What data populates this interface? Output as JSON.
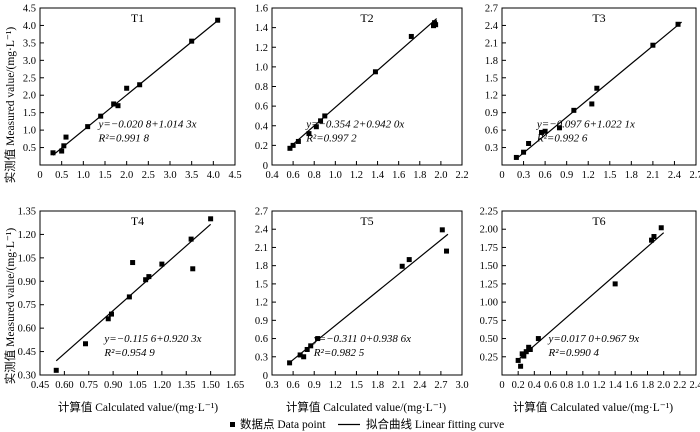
{
  "axis_labels": {
    "ylabel": "实测值 Measured value/(mg·L⁻¹)",
    "xlabel": "计算值 Calculated value/(mg·L⁻¹)"
  },
  "legend": {
    "point_label": "数据点 Data point",
    "line_label": "拟合曲线 Linear fitting curve"
  },
  "chart_data": [
    {
      "type": "scatter",
      "title": "T1",
      "xlim": [
        0,
        4.5
      ],
      "ylim": [
        0,
        4.5
      ],
      "xticks": [
        0.5,
        1.0,
        1.5,
        2.0,
        2.5,
        3.0,
        3.5,
        4.0,
        4.5
      ],
      "xtick_labels": [
        "0.5",
        "1.0",
        "1.5",
        "2.0",
        "2.5",
        "3.0",
        "3.5",
        "4.0",
        "4.5"
      ],
      "yticks": [
        0.5,
        1.0,
        1.5,
        2.0,
        2.5,
        3.0,
        3.5,
        4.0,
        4.5
      ],
      "ytick_labels": [
        "0.5",
        "1.0",
        "1.5",
        "2.0",
        "2.5",
        "3.0",
        "3.5",
        "4.0",
        "4.5"
      ],
      "points": [
        [
          0.3,
          0.35
        ],
        [
          0.5,
          0.4
        ],
        [
          0.55,
          0.55
        ],
        [
          0.6,
          0.8
        ],
        [
          1.1,
          1.1
        ],
        [
          1.4,
          1.4
        ],
        [
          1.7,
          1.75
        ],
        [
          1.8,
          1.7
        ],
        [
          2.0,
          2.2
        ],
        [
          2.3,
          2.3
        ],
        [
          3.5,
          3.55
        ],
        [
          4.1,
          4.15
        ]
      ],
      "fit": {
        "slope": 1.0143,
        "intercept": -0.0208,
        "x_range": [
          0.3,
          4.15
        ]
      },
      "equation": "y=−0.020 8+1.014 3x",
      "r2": "R²=0.991 8",
      "ylabel": "实测值 Measured value/(mg·L⁻¹)",
      "xlabel": ""
    },
    {
      "type": "scatter",
      "title": "T2",
      "xlim": [
        0.4,
        2.2
      ],
      "ylim": [
        0,
        1.6
      ],
      "xticks": [
        0.4,
        0.6,
        0.8,
        1.0,
        1.2,
        1.4,
        1.6,
        1.8,
        2.0,
        2.2
      ],
      "xtick_labels": [
        "0.4",
        "0.6",
        "0.8",
        "1.0",
        "1.2",
        "1.4",
        "1.6",
        "1.8",
        "2.0",
        "2.2"
      ],
      "yticks": [
        0.2,
        0.4,
        0.6,
        0.8,
        1.0,
        1.2,
        1.4,
        1.6
      ],
      "ytick_labels": [
        "0.2",
        "0.4",
        "0.6",
        "0.8",
        "1.0",
        "1.2",
        "1.4",
        "1.6"
      ],
      "points": [
        [
          0.57,
          0.17
        ],
        [
          0.6,
          0.2
        ],
        [
          0.65,
          0.24
        ],
        [
          0.75,
          0.32
        ],
        [
          0.82,
          0.39
        ],
        [
          0.86,
          0.45
        ],
        [
          0.9,
          0.5
        ],
        [
          1.38,
          0.95
        ],
        [
          1.72,
          1.31
        ],
        [
          1.93,
          1.42
        ],
        [
          1.95,
          1.43
        ],
        [
          1.94,
          1.45
        ]
      ],
      "fit": {
        "slope": 0.942,
        "intercept": -0.3542,
        "x_range": [
          0.57,
          1.96
        ]
      },
      "equation": "y=−0.354 2+0.942 0x",
      "r2": "R²=0.997 2",
      "ylabel": "",
      "xlabel": ""
    },
    {
      "type": "scatter",
      "title": "T3",
      "xlim": [
        0,
        2.7
      ],
      "ylim": [
        0,
        2.7
      ],
      "xticks": [
        0.3,
        0.6,
        0.9,
        1.2,
        1.5,
        1.8,
        2.1,
        2.4,
        2.7
      ],
      "xtick_labels": [
        "0.3",
        "0.6",
        "0.9",
        "1.2",
        "1.5",
        "1.8",
        "2.1",
        "2.4",
        "2.7"
      ],
      "yticks": [
        0.3,
        0.6,
        0.9,
        1.2,
        1.5,
        1.8,
        2.1,
        2.4,
        2.7
      ],
      "ytick_labels": [
        "0.3",
        "0.6",
        "0.9",
        "1.2",
        "1.5",
        "1.8",
        "2.1",
        "2.4",
        "2.7"
      ],
      "points": [
        [
          0.2,
          0.13
        ],
        [
          0.3,
          0.22
        ],
        [
          0.37,
          0.37
        ],
        [
          0.55,
          0.56
        ],
        [
          0.6,
          0.58
        ],
        [
          0.8,
          0.64
        ],
        [
          1.0,
          0.94
        ],
        [
          1.25,
          1.05
        ],
        [
          1.32,
          1.32
        ],
        [
          2.1,
          2.06
        ],
        [
          2.45,
          2.42
        ]
      ],
      "fit": {
        "slope": 1.0221,
        "intercept": -0.0976,
        "x_range": [
          0.2,
          2.5
        ]
      },
      "equation": "y=−0.097 6+1.022 1x",
      "r2": "R²=0.992 6",
      "ylabel": "",
      "xlabel": ""
    },
    {
      "type": "scatter",
      "title": "T4",
      "xlim": [
        0.45,
        1.65
      ],
      "ylim": [
        0.3,
        1.35
      ],
      "xticks": [
        0.45,
        0.6,
        0.75,
        0.9,
        1.05,
        1.2,
        1.35,
        1.5,
        1.65
      ],
      "xtick_labels": [
        "0.45",
        "0.60",
        "0.75",
        "0.90",
        "1.05",
        "1.20",
        "1.35",
        "1.50",
        "1.65"
      ],
      "yticks": [
        0.3,
        0.45,
        0.6,
        0.75,
        0.9,
        1.05,
        1.2,
        1.35
      ],
      "ytick_labels": [
        "0.30",
        "0.45",
        "0.60",
        "0.75",
        "0.90",
        "1.05",
        "1.20",
        "1.35"
      ],
      "points": [
        [
          0.55,
          0.33
        ],
        [
          0.73,
          0.5
        ],
        [
          0.87,
          0.66
        ],
        [
          0.89,
          0.69
        ],
        [
          1.0,
          0.8
        ],
        [
          1.02,
          1.02
        ],
        [
          1.1,
          0.91
        ],
        [
          1.12,
          0.93
        ],
        [
          1.2,
          1.01
        ],
        [
          1.38,
          1.17
        ],
        [
          1.39,
          0.98
        ],
        [
          1.5,
          1.3
        ]
      ],
      "fit": {
        "slope": 0.9203,
        "intercept": -0.1156,
        "x_range": [
          0.55,
          1.5
        ]
      },
      "equation": "y=−0.115 6+0.920 3x",
      "r2": "R²=0.954 9",
      "ylabel": "实测值 Measured value/(mg·L⁻¹)",
      "xlabel": "计算值 Calculated value/(mg·L⁻¹)"
    },
    {
      "type": "scatter",
      "title": "T5",
      "xlim": [
        0.3,
        3.0
      ],
      "ylim": [
        0,
        2.7
      ],
      "xticks": [
        0.3,
        0.6,
        0.9,
        1.2,
        1.5,
        1.8,
        2.1,
        2.4,
        2.7,
        3.0
      ],
      "xtick_labels": [
        "0.3",
        "0.6",
        "0.9",
        "1.2",
        "1.5",
        "1.8",
        "2.1",
        "2.4",
        "2.7",
        "3.0"
      ],
      "yticks": [
        0.3,
        0.6,
        0.9,
        1.2,
        1.5,
        1.8,
        2.1,
        2.4,
        2.7
      ],
      "ytick_labels": [
        "0.3",
        "0.6",
        "0.9",
        "1.2",
        "1.5",
        "1.8",
        "2.1",
        "2.4",
        "2.7"
      ],
      "points": [
        [
          0.55,
          0.2
        ],
        [
          0.7,
          0.33
        ],
        [
          0.75,
          0.3
        ],
        [
          0.8,
          0.42
        ],
        [
          0.85,
          0.48
        ],
        [
          0.95,
          0.6
        ],
        [
          2.15,
          1.79
        ],
        [
          2.25,
          1.9
        ],
        [
          2.72,
          2.39
        ],
        [
          2.78,
          2.04
        ]
      ],
      "fit": {
        "slope": 0.9386,
        "intercept": -0.311,
        "x_range": [
          0.55,
          2.8
        ]
      },
      "equation": "y=−0.311 0+0.938 6x",
      "r2": "R²=0.982 5",
      "ylabel": "",
      "xlabel": "计算值 Calculated value/(mg·L⁻¹)"
    },
    {
      "type": "scatter",
      "title": "T6",
      "xlim": [
        0,
        2.4
      ],
      "ylim": [
        0,
        2.25
      ],
      "xticks": [
        0.2,
        0.4,
        0.6,
        0.8,
        1.0,
        1.2,
        1.4,
        1.6,
        1.8,
        2.0,
        2.2,
        2.4
      ],
      "xtick_labels": [
        "0.2",
        "0.4",
        "0.6",
        "0.8",
        "1.0",
        "1.2",
        "1.4",
        "1.6",
        "1.8",
        "2.0",
        "2.2",
        "2.4"
      ],
      "yticks": [
        0.25,
        0.5,
        0.75,
        1.0,
        1.25,
        1.5,
        1.75,
        2.0,
        2.25
      ],
      "ytick_labels": [
        "0.25",
        "0.50",
        "0.75",
        "1.00",
        "1.25",
        "1.50",
        "1.75",
        "2.00",
        "2.25"
      ],
      "points": [
        [
          0.2,
          0.2
        ],
        [
          0.23,
          0.12
        ],
        [
          0.25,
          0.29
        ],
        [
          0.27,
          0.26
        ],
        [
          0.3,
          0.32
        ],
        [
          0.33,
          0.38
        ],
        [
          0.35,
          0.35
        ],
        [
          0.45,
          0.5
        ],
        [
          1.4,
          1.25
        ],
        [
          1.85,
          1.85
        ],
        [
          1.88,
          1.9
        ],
        [
          1.97,
          2.02
        ]
      ],
      "fit": {
        "slope": 0.9679,
        "intercept": 0.017,
        "x_range": [
          0.2,
          2.0
        ]
      },
      "equation": "y=0.017 0+0.967 9x",
      "r2": "R²=0.990 4",
      "ylabel": "",
      "xlabel": "计算值 Calculated value/(mg·L⁻¹)"
    }
  ]
}
